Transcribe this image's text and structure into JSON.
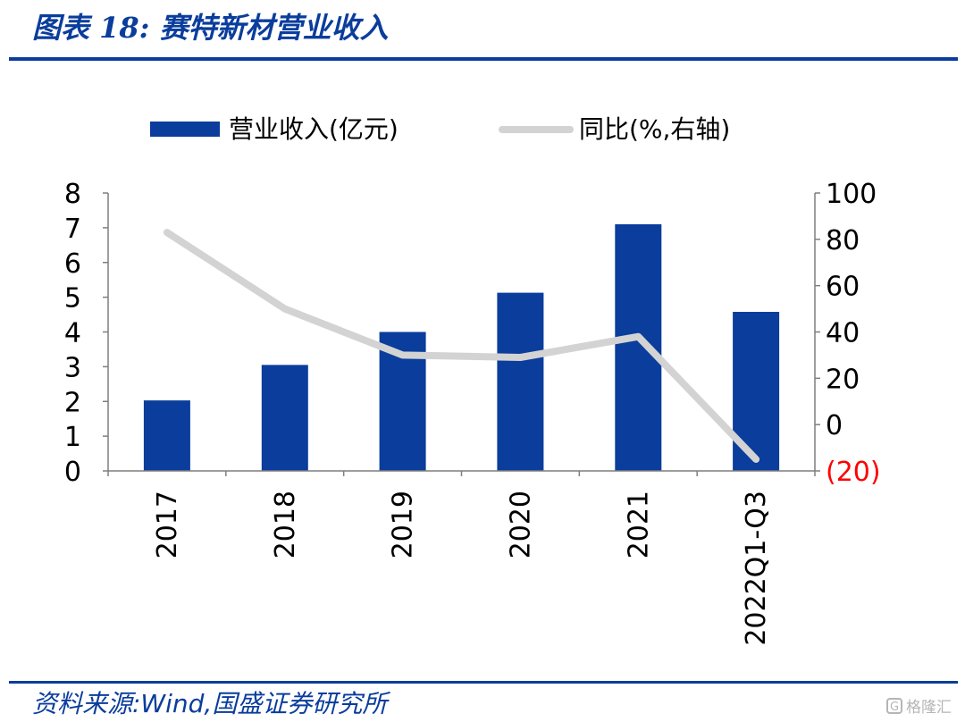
{
  "figure": {
    "title": "图表 18:  赛特新材营业收入",
    "source": "资料来源:Wind,国盛证券研究所",
    "watermark": "格隆汇",
    "watermark_mark": "G"
  },
  "colors": {
    "bar": "#0a3d9c",
    "line": "#d3d3d3",
    "axis": "#7f7f7f",
    "negative_tick": "#ff0000",
    "accent": "#0a3d9c"
  },
  "chart_data": {
    "type": "bar",
    "categories": [
      "2017",
      "2018",
      "2019",
      "2020",
      "2021",
      "2022Q1-Q3"
    ],
    "series": [
      {
        "name": "营业收入(亿元)",
        "type": "bar",
        "axis": "left",
        "values": [
          2.03,
          3.05,
          4.0,
          5.13,
          7.1,
          4.58
        ]
      },
      {
        "name": "同比(%,右轴)",
        "type": "line",
        "axis": "right",
        "values": [
          83,
          50,
          30,
          29,
          38,
          -15
        ]
      }
    ],
    "y_left": {
      "lim": [
        0,
        8
      ],
      "ticks": [
        0,
        1,
        2,
        3,
        4,
        5,
        6,
        7,
        8
      ],
      "tick_labels": [
        "0",
        "1",
        "2",
        "3",
        "4",
        "5",
        "6",
        "7",
        "8"
      ]
    },
    "y_right": {
      "lim": [
        -20,
        100
      ],
      "ticks": [
        -20,
        0,
        20,
        40,
        60,
        80,
        100
      ],
      "tick_labels": [
        "(20)",
        "0",
        "20",
        "40",
        "60",
        "80",
        "100"
      ]
    },
    "grid": false,
    "legend_position": "top"
  }
}
